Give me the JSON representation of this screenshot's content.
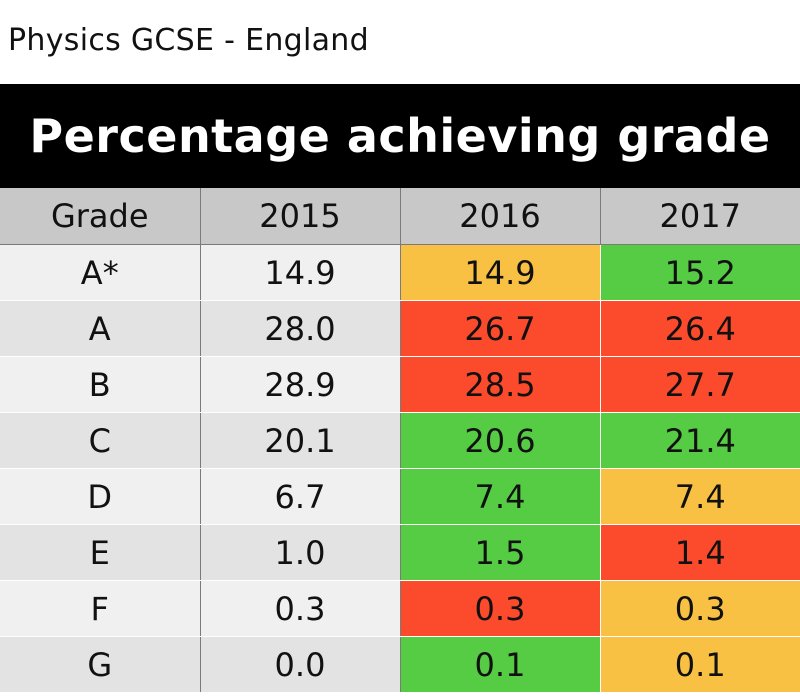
{
  "caption": "Physics GCSE - England",
  "colors": {
    "banner_bg": "#000000",
    "header_bg": "#c8c8c8",
    "row_light": "#f0f0f0",
    "row_dark": "#e3e3e3",
    "green": "#55cc44",
    "amber": "#f8c144",
    "red": "#fc4a2d"
  },
  "chart_data": {
    "type": "table",
    "title": "Percentage achieving grade",
    "columns": [
      "Grade",
      "2015",
      "2016",
      "2017"
    ],
    "rows": [
      {
        "grade": "A*",
        "values": [
          "14.9",
          "14.9",
          "15.2"
        ],
        "status": [
          "none",
          "amber",
          "green"
        ]
      },
      {
        "grade": "A",
        "values": [
          "28.0",
          "26.7",
          "26.4"
        ],
        "status": [
          "none",
          "red",
          "red"
        ]
      },
      {
        "grade": "B",
        "values": [
          "28.9",
          "28.5",
          "27.7"
        ],
        "status": [
          "none",
          "red",
          "red"
        ]
      },
      {
        "grade": "C",
        "values": [
          "20.1",
          "20.6",
          "21.4"
        ],
        "status": [
          "none",
          "green",
          "green"
        ]
      },
      {
        "grade": "D",
        "values": [
          "6.7",
          "7.4",
          "7.4"
        ],
        "status": [
          "none",
          "green",
          "amber"
        ]
      },
      {
        "grade": "E",
        "values": [
          "1.0",
          "1.5",
          "1.4"
        ],
        "status": [
          "none",
          "green",
          "red"
        ]
      },
      {
        "grade": "F",
        "values": [
          "0.3",
          "0.3",
          "0.3"
        ],
        "status": [
          "none",
          "red",
          "amber"
        ]
      },
      {
        "grade": "G",
        "values": [
          "0.0",
          "0.1",
          "0.1"
        ],
        "status": [
          "none",
          "green",
          "amber"
        ]
      }
    ]
  }
}
